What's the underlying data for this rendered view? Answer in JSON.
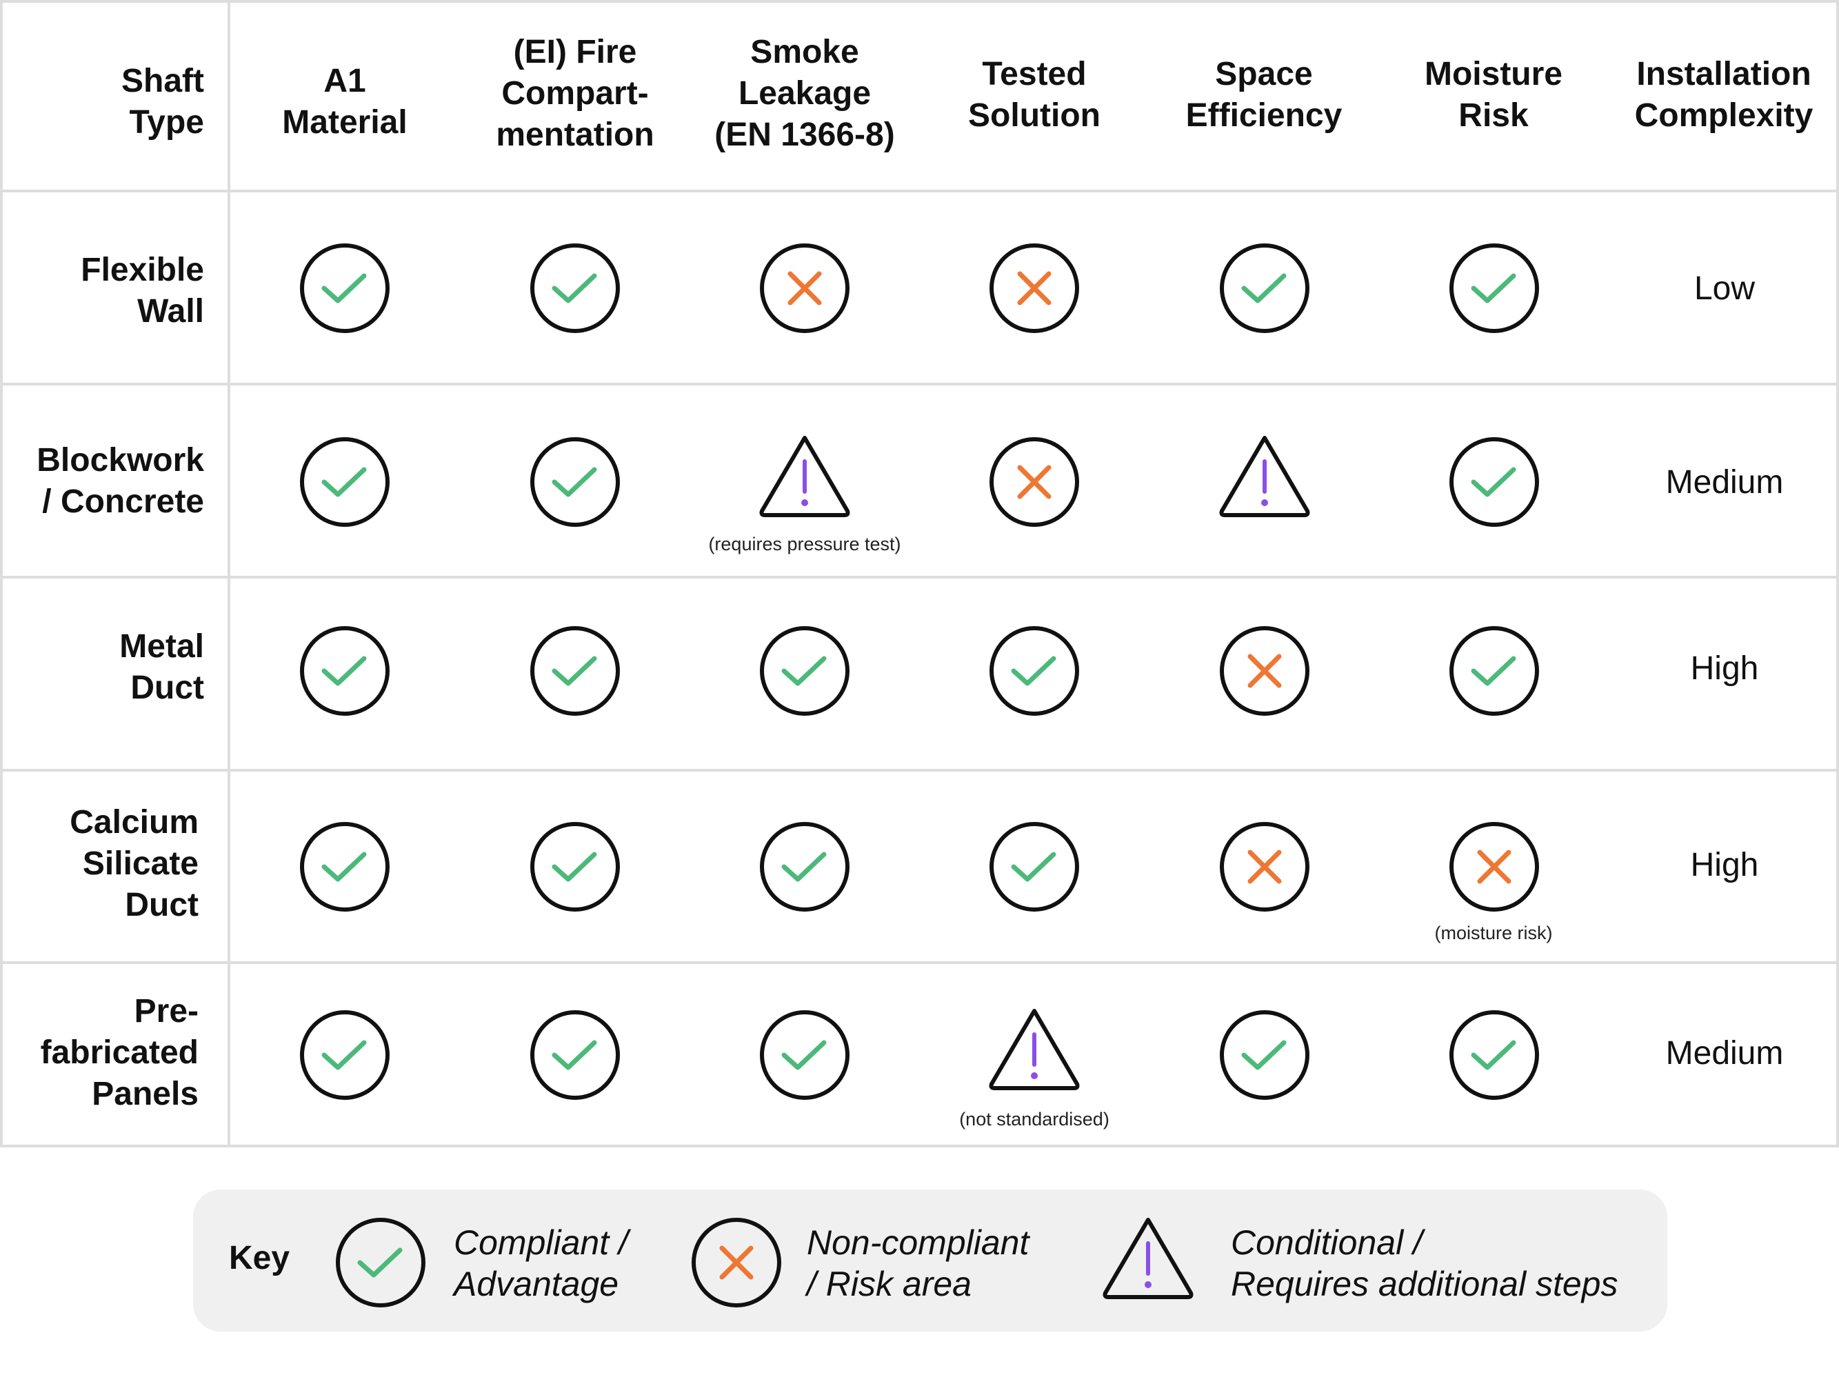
{
  "table": {
    "header": {
      "shaft_type": "Shaft\nType",
      "columns": [
        "A1\nMaterial",
        "(EI) Fire\nCompart-\nmentation",
        "Smoke\nLeakage\n(EN 1366-8)",
        "Tested\nSolution",
        "Space\nEfficiency",
        "Moisture\nRisk",
        "Installation\nComplexity"
      ]
    },
    "rows": [
      {
        "label": "Flexible\nWall",
        "cells": [
          "check",
          "check",
          "cross",
          "cross",
          "check",
          "check"
        ],
        "complexity": "Low"
      },
      {
        "label": "Blockwork\n/ Concrete",
        "cells": [
          "check",
          "check",
          "warning",
          "cross",
          "warning",
          "check"
        ],
        "complexity": "Medium",
        "notes": {
          "smoke_leakage": "(requires pressure test)"
        }
      },
      {
        "label": "Metal\nDuct",
        "cells": [
          "check",
          "check",
          "check",
          "check",
          "cross",
          "check"
        ],
        "complexity": "High"
      },
      {
        "label": "Calcium\nSilicate\nDuct",
        "cells": [
          "check",
          "check",
          "check",
          "check",
          "cross",
          "cross"
        ],
        "complexity": "High",
        "notes": {
          "moisture_risk": "(moisture risk)"
        }
      },
      {
        "label": "Pre-\nfabricated\nPanels",
        "cells": [
          "check",
          "check",
          "check",
          "warning",
          "check",
          "check"
        ],
        "complexity": "Medium",
        "notes": {
          "tested_solution": "(not standardised)"
        }
      }
    ]
  },
  "key": {
    "title": "Key",
    "items": [
      {
        "icon": "check",
        "label": "Compliant /\nAdvantage"
      },
      {
        "icon": "cross",
        "label": "Non-compliant\n/ Risk area"
      },
      {
        "icon": "warning",
        "label": "Conditional /\nRequires additional steps"
      }
    ]
  },
  "colors": {
    "check": "#4cb97a",
    "cross": "#ee7733",
    "warning_mark": "#8a4fe8",
    "outline": "#111111",
    "grid": "#dddddd",
    "key_background": "#f0f0f0"
  }
}
